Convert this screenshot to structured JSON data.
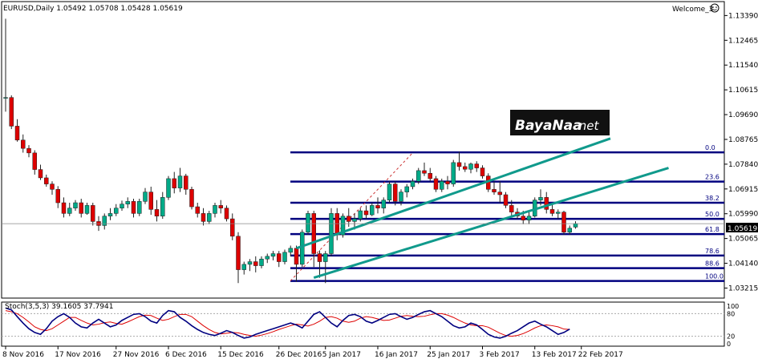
{
  "header": {
    "symbol_info": "EURUSD,Daily  1.05492 1.05708 1.05428 1.05619",
    "expert_name": "Welcome_3"
  },
  "watermark": {
    "text": "BayaNaa",
    "suffix": ".net"
  },
  "indicator": {
    "label": "Stoch(3,5,3) 39.1605 37.7941",
    "levels": [
      "100",
      "80",
      "20",
      "0"
    ]
  },
  "price_axis": {
    "labels": [
      "1.13390",
      "1.12465",
      "1.11540",
      "1.10615",
      "1.09690",
      "1.08765",
      "1.07840",
      "1.06915",
      "1.05990",
      "1.05065",
      "1.04140",
      "1.03215"
    ],
    "current_price": "1.05619"
  },
  "fibonacci": {
    "levels": [
      "0.0",
      "23.6",
      "38.2",
      "50.0",
      "61.8",
      "78.6",
      "88.6",
      "100.0"
    ]
  },
  "time_axis": {
    "labels": [
      "8 Nov 2016",
      "17 Nov 2016",
      "27 Nov 2016",
      "6 Dec 2016",
      "15 Dec 2016",
      "26 Dec 2016",
      "5 Jan 2017",
      "16 Jan 2017",
      "25 Jan 2017",
      "3 Feb 2017",
      "13 Feb 2017",
      "22 Feb 2017"
    ]
  },
  "colors": {
    "bull": "#00aa88",
    "bear": "#dd0000",
    "fib": "#00007f",
    "channel": "#109a8c",
    "stoch_main": "#000080",
    "stoch_signal": "#dd0000"
  },
  "chart_data": {
    "type": "candlestick",
    "symbol": "EURUSD",
    "timeframe": "Daily",
    "ohlc_last": {
      "open": 1.05492,
      "high": 1.05708,
      "low": 1.05428,
      "close": 1.05619
    },
    "ylim": [
      1.029,
      1.1385
    ],
    "candles": [
      [
        1.103,
        1.1327,
        1.098,
        1.1033
      ],
      [
        1.1033,
        1.1041,
        1.0915,
        1.0926
      ],
      [
        1.0926,
        1.0952,
        1.0868,
        1.0874
      ],
      [
        1.0874,
        1.0895,
        1.0827,
        1.0843
      ],
      [
        1.0843,
        1.0855,
        1.081,
        1.0826
      ],
      [
        1.0826,
        1.0836,
        1.0745,
        1.0764
      ],
      [
        1.0764,
        1.0782,
        1.0725,
        1.0733
      ],
      [
        1.0733,
        1.0745,
        1.07,
        1.071
      ],
      [
        1.071,
        1.072,
        1.067,
        1.069
      ],
      [
        1.069,
        1.0702,
        1.062,
        1.064
      ],
      [
        1.064,
        1.066,
        1.0585,
        1.06
      ],
      [
        1.06,
        1.064,
        1.059,
        1.062
      ],
      [
        1.062,
        1.065,
        1.061,
        1.064
      ],
      [
        1.064,
        1.0655,
        1.0585,
        1.06
      ],
      [
        1.06,
        1.064,
        1.0595,
        1.063
      ],
      [
        1.063,
        1.064,
        1.0555,
        1.057
      ],
      [
        1.057,
        1.059,
        1.0535,
        1.0555
      ],
      [
        1.0555,
        1.06,
        1.054,
        1.059
      ],
      [
        1.059,
        1.062,
        1.0575,
        1.06
      ],
      [
        1.06,
        1.0635,
        1.059,
        1.062
      ],
      [
        1.062,
        1.0648,
        1.061,
        1.0635
      ],
      [
        1.0635,
        1.066,
        1.062,
        1.0645
      ],
      [
        1.0645,
        1.0655,
        1.0585,
        1.06
      ],
      [
        1.06,
        1.0655,
        1.059,
        1.0645
      ],
      [
        1.0645,
        1.0695,
        1.0635,
        1.068
      ],
      [
        1.068,
        1.07,
        1.0595,
        1.0615
      ],
      [
        1.0615,
        1.065,
        1.057,
        1.059
      ],
      [
        1.059,
        1.068,
        1.058,
        1.066
      ],
      [
        1.066,
        1.074,
        1.065,
        1.073
      ],
      [
        1.073,
        1.0755,
        1.0675,
        1.0695
      ],
      [
        1.0695,
        1.077,
        1.068,
        1.074
      ],
      [
        1.074,
        1.0748,
        1.067,
        1.069
      ],
      [
        1.069,
        1.07,
        1.0615,
        1.0625
      ],
      [
        1.0625,
        1.064,
        1.0585,
        1.06
      ],
      [
        1.06,
        1.062,
        1.0555,
        1.057
      ],
      [
        1.057,
        1.061,
        1.056,
        1.06
      ],
      [
        1.06,
        1.064,
        1.0585,
        1.063
      ],
      [
        1.063,
        1.065,
        1.06,
        1.062
      ],
      [
        1.062,
        1.063,
        1.057,
        1.058
      ],
      [
        1.058,
        1.06,
        1.05,
        1.0515
      ],
      [
        1.0515,
        1.053,
        1.034,
        1.039
      ],
      [
        1.039,
        1.042,
        1.0372,
        1.041
      ],
      [
        1.041,
        1.043,
        1.0385,
        1.042
      ],
      [
        1.042,
        1.044,
        1.038,
        1.0405
      ],
      [
        1.0405,
        1.044,
        1.0395,
        1.043
      ],
      [
        1.043,
        1.045,
        1.0415,
        1.044
      ],
      [
        1.044,
        1.046,
        1.0425,
        1.045
      ],
      [
        1.045,
        1.046,
        1.04,
        1.042
      ],
      [
        1.042,
        1.0465,
        1.041,
        1.0455
      ],
      [
        1.0455,
        1.048,
        1.044,
        1.047
      ],
      [
        1.047,
        1.048,
        1.0345,
        1.041
      ],
      [
        1.041,
        1.054,
        1.04,
        1.053
      ],
      [
        1.053,
        1.061,
        1.052,
        1.06
      ],
      [
        1.06,
        1.061,
        1.04,
        1.045
      ],
      [
        1.045,
        1.0462,
        1.036,
        1.042
      ],
      [
        1.042,
        1.046,
        1.034,
        1.045
      ],
      [
        1.045,
        1.062,
        1.044,
        1.06
      ],
      [
        1.06,
        1.062,
        1.05,
        1.052
      ],
      [
        1.052,
        1.06,
        1.051,
        1.059
      ],
      [
        1.059,
        1.062,
        1.055,
        1.057
      ],
      [
        1.057,
        1.06,
        1.054,
        1.058
      ],
      [
        1.058,
        1.062,
        1.057,
        1.061
      ],
      [
        1.061,
        1.063,
        1.058,
        1.0595
      ],
      [
        1.0595,
        1.064,
        1.059,
        1.063
      ],
      [
        1.063,
        1.066,
        1.06,
        1.062
      ],
      [
        1.062,
        1.066,
        1.06,
        1.065
      ],
      [
        1.065,
        1.072,
        1.064,
        1.071
      ],
      [
        1.071,
        1.072,
        1.063,
        1.0645
      ],
      [
        1.0645,
        1.069,
        1.063,
        1.068
      ],
      [
        1.068,
        1.071,
        1.066,
        1.07
      ],
      [
        1.07,
        1.073,
        1.069,
        1.072
      ],
      [
        1.072,
        1.077,
        1.071,
        1.076
      ],
      [
        1.076,
        1.079,
        1.074,
        1.075
      ],
      [
        1.075,
        1.077,
        1.072,
        1.073
      ],
      [
        1.073,
        1.074,
        1.068,
        1.069
      ],
      [
        1.069,
        1.073,
        1.068,
        1.072
      ],
      [
        1.072,
        1.074,
        1.069,
        1.071
      ],
      [
        1.071,
        1.08,
        1.07,
        1.079
      ],
      [
        1.079,
        1.083,
        1.076,
        1.0775
      ],
      [
        1.0775,
        1.079,
        1.0755,
        1.0765
      ],
      [
        1.0765,
        1.079,
        1.075,
        1.0785
      ],
      [
        1.0785,
        1.0795,
        1.0755,
        1.077
      ],
      [
        1.077,
        1.078,
        1.073,
        1.074
      ],
      [
        1.074,
        1.075,
        1.068,
        1.069
      ],
      [
        1.069,
        1.072,
        1.067,
        1.068
      ],
      [
        1.068,
        1.072,
        1.064,
        1.067
      ],
      [
        1.067,
        1.068,
        1.062,
        1.063
      ],
      [
        1.063,
        1.065,
        1.059,
        1.0605
      ],
      [
        1.0605,
        1.062,
        1.058,
        1.059
      ],
      [
        1.059,
        1.061,
        1.056,
        1.0575
      ],
      [
        1.0575,
        1.061,
        1.056,
        1.059
      ],
      [
        1.059,
        1.066,
        1.0585,
        1.065
      ],
      [
        1.065,
        1.069,
        1.063,
        1.066
      ],
      [
        1.066,
        1.068,
        1.06,
        1.0615
      ],
      [
        1.0615,
        1.064,
        1.059,
        1.06
      ],
      [
        1.06,
        1.0615,
        1.058,
        1.0605
      ],
      [
        1.0605,
        1.061,
        1.052,
        1.053
      ],
      [
        1.053,
        1.0555,
        1.052,
        1.0545
      ],
      [
        1.0549,
        1.0571,
        1.0543,
        1.0562
      ]
    ],
    "fibonacci_levels": [
      {
        "label": "0.0",
        "price": 1.0828
      },
      {
        "label": "23.6",
        "price": 1.0719
      },
      {
        "label": "38.2",
        "price": 1.064
      },
      {
        "label": "50.0",
        "price": 1.058
      },
      {
        "label": "61.8",
        "price": 1.0523
      },
      {
        "label": "78.6",
        "price": 1.0443
      },
      {
        "label": "88.6",
        "price": 1.0396
      },
      {
        "label": "100.0",
        "price": 1.0348
      }
    ],
    "channel_lines": [
      {
        "from": [
          50,
          1.047
        ],
        "to": [
          104,
          1.088
        ]
      },
      {
        "from": [
          53,
          1.036
        ],
        "to": [
          114,
          1.077
        ]
      }
    ],
    "stochastic": {
      "ylim": [
        0,
        100
      ],
      "levels": [
        80,
        20
      ],
      "main": [
        95,
        90,
        72,
        55,
        40,
        30,
        25,
        40,
        60,
        72,
        80,
        70,
        55,
        45,
        42,
        55,
        65,
        55,
        45,
        50,
        62,
        70,
        78,
        80,
        72,
        60,
        55,
        75,
        88,
        85,
        70,
        60,
        48,
        38,
        30,
        25,
        22,
        28,
        35,
        30,
        22,
        15,
        18,
        25,
        30,
        35,
        40,
        45,
        50,
        55,
        50,
        42,
        60,
        78,
        85,
        70,
        55,
        45,
        62,
        75,
        78,
        72,
        60,
        55,
        62,
        70,
        78,
        80,
        72,
        65,
        70,
        78,
        85,
        88,
        80,
        72,
        60,
        48,
        42,
        45,
        55,
        50,
        38,
        25,
        18,
        15,
        20,
        28,
        35,
        45,
        55,
        60,
        52,
        45,
        35,
        25,
        30,
        39
      ],
      "signal": [
        88,
        85,
        80,
        70,
        58,
        45,
        38,
        35,
        40,
        50,
        60,
        70,
        70,
        62,
        55,
        50,
        52,
        56,
        58,
        54,
        52,
        58,
        65,
        72,
        76,
        75,
        68,
        62,
        65,
        72,
        78,
        78,
        72,
        60,
        48,
        38,
        30,
        26,
        28,
        30,
        29,
        25,
        22,
        20,
        23,
        27,
        32,
        38,
        43,
        48,
        52,
        50,
        47,
        52,
        60,
        70,
        72,
        68,
        60,
        57,
        60,
        68,
        72,
        70,
        66,
        62,
        63,
        68,
        73,
        75,
        73,
        72,
        73,
        77,
        80,
        80,
        76,
        70,
        62,
        55,
        50,
        48,
        48,
        44,
        36,
        28,
        22,
        20,
        22,
        27,
        34,
        42,
        48,
        50,
        48,
        45,
        39,
        38
      ]
    }
  }
}
